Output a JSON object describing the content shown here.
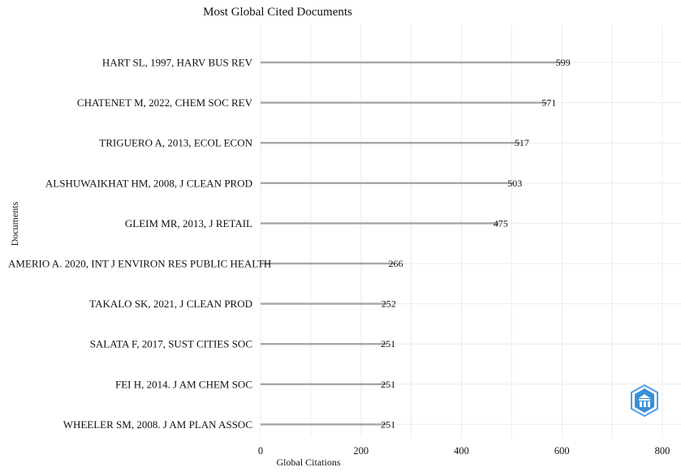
{
  "chart_data": {
    "type": "bar",
    "orientation": "horizontal",
    "title": "Most Global Cited Documents",
    "xlabel": "Global Citations",
    "ylabel": "Documents",
    "xlim": [
      0,
      800
    ],
    "xticks": [
      0,
      200,
      400,
      600,
      800
    ],
    "grid": true,
    "categories": [
      "HART SL, 1997, HARV BUS REV",
      "CHATENET M, 2022, CHEM SOC REV",
      "TRIGUERO A, 2013, ECOL ECON",
      "ALSHUWAIKHAT HM, 2008, J CLEAN PROD",
      "GLEIM MR, 2013, J RETAIL",
      "AMERIO A. 2020, INT J ENVIRON RES PUBLIC HEALTH",
      "TAKALO SK, 2021, J CLEAN PROD",
      "SALATA F, 2017, SUST CITIES SOC",
      "FEI H, 2014. J AM CHEM SOC",
      "WHEELER SM, 2008. J AM PLAN ASSOC"
    ],
    "values": [
      599,
      571,
      517,
      503,
      475,
      266,
      252,
      251,
      251,
      251
    ],
    "colors": {
      "bar": "#a6a6a6",
      "grid": "#ebebeb",
      "text": "#111111"
    }
  },
  "watermark": {
    "icon": "shield-logo-icon",
    "color": "#3a8fd8"
  }
}
